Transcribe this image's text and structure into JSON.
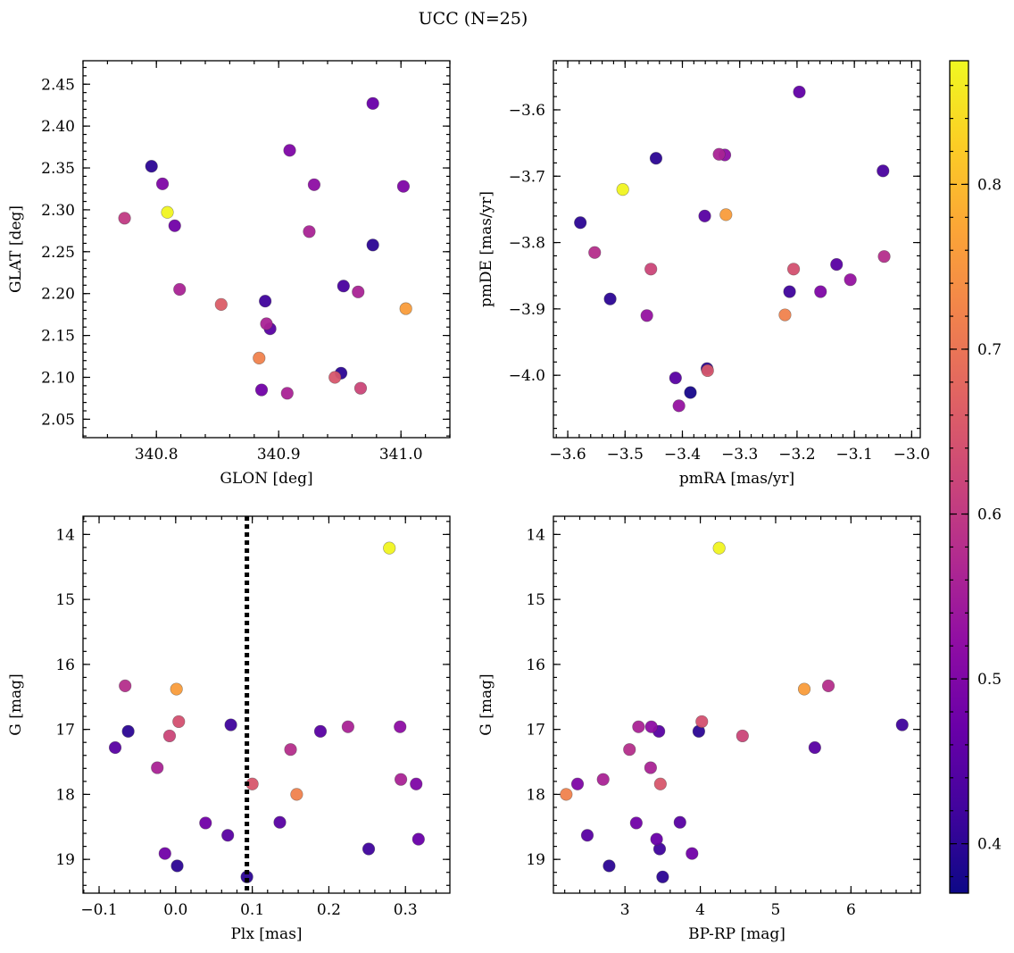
{
  "chart_data": {
    "type": "scatter",
    "title": "UCC (N=25)",
    "colorbar": {
      "range": [
        0.37,
        0.875
      ],
      "ticks": [
        0.4,
        0.5,
        0.6,
        0.7,
        0.8
      ],
      "tick_labels": [
        "0.4",
        "0.5",
        "0.6",
        "0.7",
        "0.8"
      ],
      "colormap": "plasma"
    },
    "panels": [
      {
        "xlabel": "GLON [deg]",
        "ylabel": "GLAT [deg]",
        "xlim": [
          340.74,
          341.04
        ],
        "ylim": [
          2.028,
          2.478
        ],
        "y_inverted": false,
        "xticks": [
          340.8,
          340.9,
          341.0
        ],
        "xtick_labels": [
          "340.8",
          "340.9",
          "341.0"
        ],
        "yticks": [
          2.05,
          2.1,
          2.15,
          2.2,
          2.25,
          2.3,
          2.35,
          2.4,
          2.45
        ],
        "ytick_labels": [
          "2.05",
          "2.10",
          "2.15",
          "2.20",
          "2.25",
          "2.30",
          "2.35",
          "2.40",
          "2.45"
        ],
        "x_minor": 0.02,
        "y_minor": 0.01,
        "vline": null,
        "points": [
          {
            "x": 340.796,
            "y": 2.352,
            "c": 0.4
          },
          {
            "x": 340.805,
            "y": 2.331,
            "c": 0.5
          },
          {
            "x": 340.809,
            "y": 2.297,
            "c": 0.87
          },
          {
            "x": 340.774,
            "y": 2.29,
            "c": 0.6
          },
          {
            "x": 340.815,
            "y": 2.281,
            "c": 0.48
          },
          {
            "x": 340.819,
            "y": 2.205,
            "c": 0.56
          },
          {
            "x": 340.853,
            "y": 2.187,
            "c": 0.66
          },
          {
            "x": 340.889,
            "y": 2.191,
            "c": 0.42
          },
          {
            "x": 340.89,
            "y": 2.164,
            "c": 0.56
          },
          {
            "x": 340.893,
            "y": 2.158,
            "c": 0.45
          },
          {
            "x": 340.884,
            "y": 2.123,
            "c": 0.72
          },
          {
            "x": 340.886,
            "y": 2.085,
            "c": 0.48
          },
          {
            "x": 340.907,
            "y": 2.081,
            "c": 0.56
          },
          {
            "x": 340.909,
            "y": 2.371,
            "c": 0.5
          },
          {
            "x": 340.925,
            "y": 2.274,
            "c": 0.56
          },
          {
            "x": 340.929,
            "y": 2.33,
            "c": 0.52
          },
          {
            "x": 340.953,
            "y": 2.209,
            "c": 0.43
          },
          {
            "x": 340.951,
            "y": 2.105,
            "c": 0.4
          },
          {
            "x": 340.946,
            "y": 2.1,
            "c": 0.65
          },
          {
            "x": 340.965,
            "y": 2.202,
            "c": 0.56
          },
          {
            "x": 340.967,
            "y": 2.087,
            "c": 0.62
          },
          {
            "x": 340.977,
            "y": 2.427,
            "c": 0.47
          },
          {
            "x": 340.977,
            "y": 2.258,
            "c": 0.4
          },
          {
            "x": 341.002,
            "y": 2.328,
            "c": 0.5
          },
          {
            "x": 341.004,
            "y": 2.182,
            "c": 0.76
          }
        ]
      },
      {
        "xlabel": "pmRA [mas/yr]",
        "ylabel": "pmDE [mas/yr]",
        "xlim": [
          -3.625,
          -2.985
        ],
        "ylim": [
          -4.094,
          -3.526
        ],
        "y_inverted": false,
        "xticks": [
          -3.6,
          -3.5,
          -3.4,
          -3.3,
          -3.2,
          -3.1,
          -3.0
        ],
        "xtick_labels": [
          "−3.6",
          "−3.5",
          "−3.4",
          "−3.3",
          "−3.2",
          "−3.1",
          "−3.0"
        ],
        "yticks": [
          -4.0,
          -3.9,
          -3.8,
          -3.7,
          -3.6
        ],
        "ytick_labels": [
          "−4.0",
          "−3.9",
          "−3.8",
          "−3.7",
          "−3.6"
        ],
        "x_minor": 0.02,
        "y_minor": 0.02,
        "vline": null,
        "points": [
          {
            "x": -3.578,
            "y": -3.77,
            "c": 0.4
          },
          {
            "x": -3.553,
            "y": -3.815,
            "c": 0.58
          },
          {
            "x": -3.526,
            "y": -3.885,
            "c": 0.4
          },
          {
            "x": -3.504,
            "y": -3.72,
            "c": 0.87
          },
          {
            "x": -3.462,
            "y": -3.91,
            "c": 0.53
          },
          {
            "x": -3.455,
            "y": -3.84,
            "c": 0.62
          },
          {
            "x": -3.446,
            "y": -3.673,
            "c": 0.4
          },
          {
            "x": -3.412,
            "y": -4.004,
            "c": 0.45
          },
          {
            "x": -3.406,
            "y": -4.046,
            "c": 0.53
          },
          {
            "x": -3.386,
            "y": -4.026,
            "c": 0.38
          },
          {
            "x": -3.361,
            "y": -3.76,
            "c": 0.45
          },
          {
            "x": -3.357,
            "y": -3.99,
            "c": 0.4
          },
          {
            "x": -3.356,
            "y": -3.993,
            "c": 0.65
          },
          {
            "x": -3.336,
            "y": -3.667,
            "c": 0.56
          },
          {
            "x": -3.326,
            "y": -3.668,
            "c": 0.52
          },
          {
            "x": -3.324,
            "y": -3.758,
            "c": 0.76
          },
          {
            "x": -3.221,
            "y": -3.909,
            "c": 0.72
          },
          {
            "x": -3.213,
            "y": -3.874,
            "c": 0.42
          },
          {
            "x": -3.206,
            "y": -3.84,
            "c": 0.64
          },
          {
            "x": -3.196,
            "y": -3.573,
            "c": 0.46
          },
          {
            "x": -3.159,
            "y": -3.874,
            "c": 0.5
          },
          {
            "x": -3.131,
            "y": -3.833,
            "c": 0.45
          },
          {
            "x": -3.107,
            "y": -3.856,
            "c": 0.53
          },
          {
            "x": -3.05,
            "y": -3.692,
            "c": 0.43
          },
          {
            "x": -3.048,
            "y": -3.821,
            "c": 0.58
          }
        ]
      },
      {
        "xlabel": "Plx [mas]",
        "ylabel": "G [mag]",
        "xlim": [
          -0.121,
          0.358
        ],
        "ylim": [
          13.72,
          19.52
        ],
        "y_inverted": true,
        "xticks": [
          -0.1,
          0.0,
          0.1,
          0.2,
          0.3
        ],
        "xtick_labels": [
          "−0.1",
          "0.0",
          "0.1",
          "0.2",
          "0.3"
        ],
        "yticks": [
          14,
          15,
          16,
          17,
          18,
          19
        ],
        "ytick_labels": [
          "14",
          "15",
          "16",
          "17",
          "18",
          "19"
        ],
        "x_minor": 0.02,
        "y_minor": 0.2,
        "vline": 0.093,
        "points": [
          {
            "x": -0.079,
            "y": 17.28,
            "c": 0.45
          },
          {
            "x": -0.066,
            "y": 16.33,
            "c": 0.58
          },
          {
            "x": -0.062,
            "y": 17.03,
            "c": 0.4
          },
          {
            "x": -0.024,
            "y": 17.59,
            "c": 0.56
          },
          {
            "x": -0.014,
            "y": 18.91,
            "c": 0.48
          },
          {
            "x": -0.008,
            "y": 17.1,
            "c": 0.62
          },
          {
            "x": 0.002,
            "y": 19.1,
            "c": 0.4
          },
          {
            "x": 0.001,
            "y": 16.38,
            "c": 0.76
          },
          {
            "x": 0.004,
            "y": 16.88,
            "c": 0.64
          },
          {
            "x": 0.039,
            "y": 18.44,
            "c": 0.48
          },
          {
            "x": 0.068,
            "y": 18.63,
            "c": 0.45
          },
          {
            "x": 0.072,
            "y": 16.93,
            "c": 0.42
          },
          {
            "x": 0.093,
            "y": 19.27,
            "c": 0.4
          },
          {
            "x": 0.1,
            "y": 17.84,
            "c": 0.65
          },
          {
            "x": 0.136,
            "y": 18.43,
            "c": 0.45
          },
          {
            "x": 0.15,
            "y": 17.31,
            "c": 0.58
          },
          {
            "x": 0.158,
            "y": 18.0,
            "c": 0.72
          },
          {
            "x": 0.189,
            "y": 17.03,
            "c": 0.45
          },
          {
            "x": 0.225,
            "y": 16.96,
            "c": 0.56
          },
          {
            "x": 0.252,
            "y": 18.84,
            "c": 0.42
          },
          {
            "x": 0.279,
            "y": 14.21,
            "c": 0.87
          },
          {
            "x": 0.293,
            "y": 16.96,
            "c": 0.52
          },
          {
            "x": 0.294,
            "y": 17.77,
            "c": 0.56
          },
          {
            "x": 0.314,
            "y": 17.84,
            "c": 0.5
          },
          {
            "x": 0.317,
            "y": 18.69,
            "c": 0.47
          }
        ]
      },
      {
        "xlabel": "BP-RP [mag]",
        "ylabel": "G [mag]",
        "xlim": [
          2.05,
          6.92
        ],
        "ylim": [
          13.72,
          19.52
        ],
        "y_inverted": true,
        "xticks": [
          3,
          4,
          5,
          6
        ],
        "xtick_labels": [
          "3",
          "4",
          "5",
          "6"
        ],
        "yticks": [
          14,
          15,
          16,
          17,
          18,
          19
        ],
        "ytick_labels": [
          "14",
          "15",
          "16",
          "17",
          "18",
          "19"
        ],
        "x_minor": 0.2,
        "y_minor": 0.2,
        "vline": null,
        "points": [
          {
            "x": 2.22,
            "y": 18.0,
            "c": 0.72
          },
          {
            "x": 2.37,
            "y": 17.84,
            "c": 0.5
          },
          {
            "x": 2.5,
            "y": 18.63,
            "c": 0.45
          },
          {
            "x": 2.71,
            "y": 17.77,
            "c": 0.56
          },
          {
            "x": 2.79,
            "y": 19.1,
            "c": 0.4
          },
          {
            "x": 3.06,
            "y": 17.31,
            "c": 0.58
          },
          {
            "x": 3.15,
            "y": 18.44,
            "c": 0.48
          },
          {
            "x": 3.18,
            "y": 16.96,
            "c": 0.56
          },
          {
            "x": 3.35,
            "y": 16.96,
            "c": 0.52
          },
          {
            "x": 3.34,
            "y": 17.59,
            "c": 0.56
          },
          {
            "x": 3.42,
            "y": 18.69,
            "c": 0.47
          },
          {
            "x": 3.45,
            "y": 17.03,
            "c": 0.45
          },
          {
            "x": 3.46,
            "y": 18.84,
            "c": 0.42
          },
          {
            "x": 3.47,
            "y": 17.84,
            "c": 0.65
          },
          {
            "x": 3.5,
            "y": 19.27,
            "c": 0.4
          },
          {
            "x": 3.73,
            "y": 18.43,
            "c": 0.45
          },
          {
            "x": 3.89,
            "y": 18.91,
            "c": 0.48
          },
          {
            "x": 3.98,
            "y": 17.03,
            "c": 0.4
          },
          {
            "x": 4.02,
            "y": 16.88,
            "c": 0.64
          },
          {
            "x": 4.25,
            "y": 14.21,
            "c": 0.87
          },
          {
            "x": 4.56,
            "y": 17.1,
            "c": 0.62
          },
          {
            "x": 5.38,
            "y": 16.38,
            "c": 0.76
          },
          {
            "x": 5.52,
            "y": 17.28,
            "c": 0.45
          },
          {
            "x": 5.7,
            "y": 16.33,
            "c": 0.58
          },
          {
            "x": 6.68,
            "y": 16.93,
            "c": 0.42
          }
        ]
      }
    ]
  }
}
